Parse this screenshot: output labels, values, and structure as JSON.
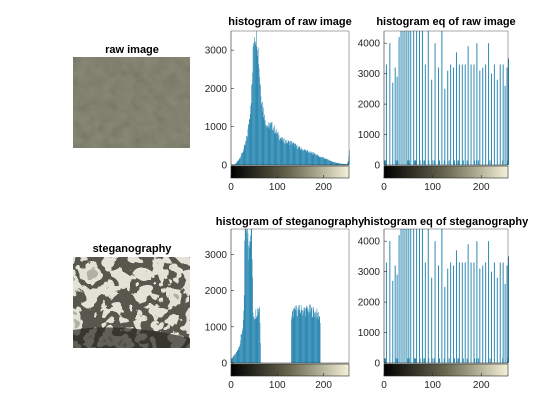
{
  "figure": {
    "panel_titles": {
      "raw_image": "raw image",
      "hist_raw": "histogram of raw image",
      "hist_eq_raw": "histogram eq of raw image",
      "steg_image": "steganography",
      "hist_steg": "histogram of steganography",
      "hist_eq_steg": "histogram eq of steganography"
    }
  },
  "colors": {
    "bar": "#2f8ab3",
    "axis": "#262626",
    "colorbar_start": "#000000",
    "colorbar_mid": "#6a6850",
    "colorbar_end": "#f4f1d8",
    "image_tone": "#8a8a78"
  },
  "chart_data": [
    {
      "id": "hist_raw",
      "type": "bar",
      "title": "histogram of raw image",
      "xlim": [
        0,
        255
      ],
      "ylim": [
        0,
        3500
      ],
      "xticks": [
        0,
        100,
        200
      ],
      "yticks": [
        0,
        1000,
        2000,
        3000
      ],
      "profile": [
        [
          0,
          0
        ],
        [
          5,
          5
        ],
        [
          10,
          40
        ],
        [
          15,
          120
        ],
        [
          20,
          220
        ],
        [
          25,
          350
        ],
        [
          30,
          520
        ],
        [
          35,
          800
        ],
        [
          40,
          1300
        ],
        [
          45,
          2100
        ],
        [
          48,
          3200
        ],
        [
          50,
          3500
        ],
        [
          55,
          3500
        ],
        [
          58,
          3000
        ],
        [
          62,
          2200
        ],
        [
          66,
          1700
        ],
        [
          70,
          1350
        ],
        [
          75,
          1100
        ],
        [
          80,
          1000
        ],
        [
          85,
          1050
        ],
        [
          90,
          1000
        ],
        [
          95,
          900
        ],
        [
          100,
          800
        ],
        [
          110,
          650
        ],
        [
          120,
          600
        ],
        [
          130,
          580
        ],
        [
          140,
          500
        ],
        [
          150,
          420
        ],
        [
          160,
          380
        ],
        [
          170,
          320
        ],
        [
          180,
          300
        ],
        [
          190,
          220
        ],
        [
          200,
          180
        ],
        [
          210,
          130
        ],
        [
          220,
          80
        ],
        [
          230,
          50
        ],
        [
          240,
          30
        ],
        [
          250,
          20
        ],
        [
          253,
          120
        ],
        [
          255,
          350
        ]
      ]
    },
    {
      "id": "hist_eq_raw",
      "type": "bar",
      "title": "histogram eq of raw image",
      "xlim": [
        0,
        255
      ],
      "ylim": [
        0,
        4400
      ],
      "xticks": [
        0,
        100,
        200
      ],
      "yticks": [
        0,
        1000,
        2000,
        3000,
        4000
      ],
      "sparse_levels": [
        [
          4,
          3300
        ],
        [
          11,
          4000
        ],
        [
          17,
          2700
        ],
        [
          22,
          3200
        ],
        [
          26,
          2900
        ],
        [
          30,
          4200
        ],
        [
          34,
          4400
        ],
        [
          38,
          4400
        ],
        [
          42,
          4400
        ],
        [
          46,
          4400
        ],
        [
          50,
          4400
        ],
        [
          54,
          4400
        ],
        [
          60,
          4400
        ],
        [
          66,
          4400
        ],
        [
          72,
          4400
        ],
        [
          78,
          4400
        ],
        [
          84,
          3300
        ],
        [
          90,
          4400
        ],
        [
          97,
          2800
        ],
        [
          104,
          4000
        ],
        [
          111,
          3200
        ],
        [
          118,
          4400
        ],
        [
          124,
          2500
        ],
        [
          130,
          3100
        ],
        [
          136,
          3300
        ],
        [
          142,
          3200
        ],
        [
          148,
          3700
        ],
        [
          154,
          3300
        ],
        [
          160,
          3300
        ],
        [
          166,
          3300
        ],
        [
          172,
          3900
        ],
        [
          178,
          3300
        ],
        [
          184,
          3300
        ],
        [
          190,
          4000
        ],
        [
          196,
          3100
        ],
        [
          202,
          3200
        ],
        [
          208,
          3300
        ],
        [
          214,
          4000
        ],
        [
          220,
          3000
        ],
        [
          226,
          3300
        ],
        [
          232,
          2800
        ],
        [
          238,
          3300
        ],
        [
          244,
          3300
        ],
        [
          248,
          2600
        ],
        [
          252,
          3200
        ],
        [
          255,
          3500
        ]
      ],
      "base_level": 150
    },
    {
      "id": "hist_steg",
      "type": "bar",
      "title": "histogram of steganography",
      "xlim": [
        0,
        255
      ],
      "ylim": [
        0,
        3700
      ],
      "xticks": [
        0,
        100,
        200
      ],
      "yticks": [
        0,
        1000,
        2000,
        3000
      ],
      "profile": [
        [
          0,
          100
        ],
        [
          3,
          150
        ],
        [
          6,
          200
        ],
        [
          9,
          250
        ],
        [
          12,
          300
        ],
        [
          15,
          400
        ],
        [
          18,
          500
        ],
        [
          21,
          700
        ],
        [
          24,
          900
        ],
        [
          27,
          1300
        ],
        [
          28,
          1700
        ],
        [
          29,
          3400
        ],
        [
          30,
          3700
        ],
        [
          33,
          3700
        ],
        [
          35,
          3700
        ],
        [
          37,
          3000
        ],
        [
          40,
          3700
        ],
        [
          44,
          3700
        ],
        [
          47,
          1400
        ],
        [
          50,
          1300
        ],
        [
          54,
          1400
        ],
        [
          58,
          1500
        ],
        [
          61,
          1600
        ],
        [
          63,
          600
        ],
        [
          64,
          0
        ],
        [
          129,
          0
        ],
        [
          130,
          1300
        ],
        [
          135,
          1400
        ],
        [
          140,
          1450
        ],
        [
          150,
          1450
        ],
        [
          160,
          1450
        ],
        [
          170,
          1450
        ],
        [
          180,
          1400
        ],
        [
          190,
          1300
        ],
        [
          192,
          1200
        ],
        [
          193,
          0
        ],
        [
          255,
          0
        ]
      ]
    },
    {
      "id": "hist_eq_steg",
      "type": "bar",
      "title": "histogram eq of steganography",
      "xlim": [
        0,
        255
      ],
      "ylim": [
        0,
        4400
      ],
      "xticks": [
        0,
        100,
        200
      ],
      "yticks": [
        0,
        1000,
        2000,
        3000,
        4000
      ],
      "sparse_levels": [
        [
          4,
          3300
        ],
        [
          11,
          4000
        ],
        [
          17,
          2700
        ],
        [
          22,
          3200
        ],
        [
          26,
          2900
        ],
        [
          30,
          4200
        ],
        [
          34,
          4400
        ],
        [
          38,
          4400
        ],
        [
          42,
          4400
        ],
        [
          46,
          4400
        ],
        [
          50,
          4400
        ],
        [
          54,
          4400
        ],
        [
          60,
          4400
        ],
        [
          66,
          4400
        ],
        [
          72,
          4400
        ],
        [
          78,
          4400
        ],
        [
          84,
          3300
        ],
        [
          90,
          4400
        ],
        [
          97,
          2800
        ],
        [
          104,
          4000
        ],
        [
          111,
          3200
        ],
        [
          118,
          4400
        ],
        [
          124,
          2500
        ],
        [
          130,
          3100
        ],
        [
          136,
          3300
        ],
        [
          142,
          3200
        ],
        [
          148,
          3700
        ],
        [
          154,
          3300
        ],
        [
          160,
          3300
        ],
        [
          166,
          3300
        ],
        [
          172,
          3900
        ],
        [
          178,
          3300
        ],
        [
          184,
          3300
        ],
        [
          190,
          4000
        ],
        [
          196,
          3100
        ],
        [
          202,
          3200
        ],
        [
          208,
          3300
        ],
        [
          214,
          4000
        ],
        [
          220,
          3000
        ],
        [
          226,
          3300
        ],
        [
          232,
          2800
        ],
        [
          238,
          3300
        ],
        [
          244,
          3300
        ],
        [
          248,
          2600
        ],
        [
          252,
          3200
        ],
        [
          255,
          3500
        ]
      ],
      "base_level": 150
    }
  ]
}
